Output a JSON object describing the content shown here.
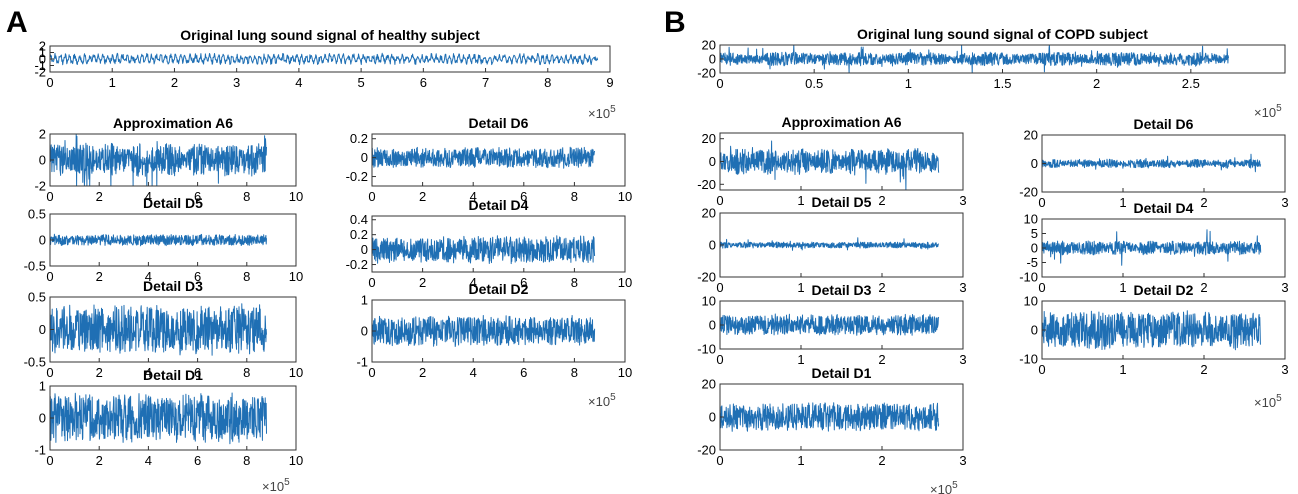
{
  "panel_labels": [
    "A",
    "B"
  ],
  "colors": {
    "signal": "#1f6fb4",
    "axis": "#333333",
    "text": "#000000"
  },
  "chart_data": [
    {
      "id": "A-orig",
      "panel": "A",
      "type": "line",
      "title": "Original lung sound signal of healthy subject",
      "xlim": [
        0,
        9
      ],
      "xticks": [
        0,
        1,
        2,
        3,
        4,
        5,
        6,
        7,
        8,
        9
      ],
      "ylim": [
        -2,
        2
      ],
      "yticks": [
        -2,
        -1,
        0,
        1,
        2
      ],
      "x_exponent": "×10^5",
      "x_range_signal": [
        0,
        8.8
      ],
      "amplitude": 0.9,
      "style": "wave",
      "grid": false
    },
    {
      "id": "A-a6",
      "panel": "A",
      "type": "line",
      "title": "Approximation A6",
      "xlim": [
        0,
        10
      ],
      "xticks": [
        0,
        2,
        4,
        6,
        8,
        10
      ],
      "ylim": [
        -2,
        2
      ],
      "yticks": [
        -2,
        0,
        2
      ],
      "x_range_signal": [
        0,
        8.8
      ],
      "amplitude": 1.3,
      "style": "spiky",
      "grid": false
    },
    {
      "id": "A-d6",
      "panel": "A",
      "type": "line",
      "title": "Detail D6",
      "xlim": [
        0,
        10
      ],
      "xticks": [
        0,
        2,
        4,
        6,
        8,
        10
      ],
      "ylim": [
        -0.3,
        0.25
      ],
      "yticks": [
        -0.2,
        0,
        0.2
      ],
      "x_range_signal": [
        0,
        8.8
      ],
      "amplitude": 0.1,
      "style": "dense",
      "grid": false
    },
    {
      "id": "A-d5",
      "panel": "A",
      "type": "line",
      "title": "Detail D5",
      "xlim": [
        0,
        10
      ],
      "xticks": [
        0,
        2,
        4,
        6,
        8,
        10
      ],
      "ylim": [
        -0.5,
        0.5
      ],
      "yticks": [
        -0.5,
        0,
        0.5
      ],
      "x_range_signal": [
        0,
        8.8
      ],
      "amplitude": 0.1,
      "style": "dense",
      "grid": false
    },
    {
      "id": "A-d4",
      "panel": "A",
      "type": "line",
      "title": "Detail D4",
      "xlim": [
        0,
        10
      ],
      "xticks": [
        0,
        2,
        4,
        6,
        8,
        10
      ],
      "ylim": [
        -0.3,
        0.45
      ],
      "yticks": [
        -0.2,
        0,
        0.2,
        0.4
      ],
      "x_range_signal": [
        0,
        8.8
      ],
      "amplitude": 0.17,
      "style": "dense",
      "grid": false
    },
    {
      "id": "A-d3",
      "panel": "A",
      "type": "line",
      "title": "Detail D3",
      "xlim": [
        0,
        10
      ],
      "xticks": [
        0,
        2,
        4,
        6,
        8,
        10
      ],
      "ylim": [
        -0.5,
        0.5
      ],
      "yticks": [
        -0.5,
        0,
        0.5
      ],
      "x_range_signal": [
        0,
        8.8
      ],
      "amplitude": 0.35,
      "style": "dense",
      "grid": false
    },
    {
      "id": "A-d2",
      "panel": "A",
      "type": "line",
      "title": "Detail D2",
      "xlim": [
        0,
        10
      ],
      "xticks": [
        0,
        2,
        4,
        6,
        8,
        10
      ],
      "ylim": [
        -1,
        1
      ],
      "yticks": [
        -1,
        0,
        1
      ],
      "x_range_signal": [
        0,
        8.8
      ],
      "amplitude": 0.45,
      "style": "dense",
      "grid": false
    },
    {
      "id": "A-d1",
      "panel": "A",
      "type": "line",
      "title": "Detail D1",
      "xlim": [
        0,
        10
      ],
      "xticks": [
        0,
        2,
        4,
        6,
        8,
        10
      ],
      "ylim": [
        -1,
        1
      ],
      "yticks": [
        -1,
        0,
        1
      ],
      "x_range_signal": [
        0,
        8.8
      ],
      "amplitude": 0.7,
      "style": "dense",
      "grid": false
    },
    {
      "id": "B-orig",
      "panel": "B",
      "type": "line",
      "title": "Original lung sound signal of COPD subject",
      "xlim": [
        0,
        3
      ],
      "xticks": [
        0,
        0.5,
        1,
        1.5,
        2,
        2.5
      ],
      "ylim": [
        -20,
        20
      ],
      "yticks": [
        -20,
        0,
        20
      ],
      "x_exponent": "×10^5",
      "x_range_signal": [
        0,
        2.7
      ],
      "amplitude": 10,
      "style": "spiky",
      "grid": false
    },
    {
      "id": "B-a6",
      "panel": "B",
      "type": "line",
      "title": "Approximation A6",
      "xlim": [
        0,
        3
      ],
      "xticks": [
        0,
        1,
        2,
        3
      ],
      "ylim": [
        -25,
        25
      ],
      "yticks": [
        -20,
        0,
        20
      ],
      "x_range_signal": [
        0,
        2.7
      ],
      "amplitude": 12,
      "style": "spiky",
      "grid": false
    },
    {
      "id": "B-d6",
      "panel": "B",
      "type": "line",
      "title": "Detail D6",
      "xlim": [
        0,
        3
      ],
      "xticks": [
        0,
        1,
        2,
        3
      ],
      "ylim": [
        -20,
        20
      ],
      "yticks": [
        -20,
        0,
        20
      ],
      "x_range_signal": [
        0,
        2.7
      ],
      "amplitude": 3,
      "style": "spiky",
      "grid": false
    },
    {
      "id": "B-d5",
      "panel": "B",
      "type": "line",
      "title": "Detail D5",
      "xlim": [
        0,
        3
      ],
      "xticks": [
        0,
        1,
        2,
        3
      ],
      "ylim": [
        -20,
        20
      ],
      "yticks": [
        -20,
        0,
        20
      ],
      "x_range_signal": [
        0,
        2.7
      ],
      "amplitude": 2,
      "style": "spiky",
      "grid": false
    },
    {
      "id": "B-d4",
      "panel": "B",
      "type": "line",
      "title": "Detail D4",
      "xlim": [
        0,
        3
      ],
      "xticks": [
        0,
        1,
        2,
        3
      ],
      "ylim": [
        -10,
        10
      ],
      "yticks": [
        -10,
        -5,
        0,
        5,
        10
      ],
      "x_range_signal": [
        0,
        2.7
      ],
      "amplitude": 2.5,
      "style": "spiky",
      "grid": false
    },
    {
      "id": "B-d3",
      "panel": "B",
      "type": "line",
      "title": "Detail D3",
      "xlim": [
        0,
        3
      ],
      "xticks": [
        0,
        1,
        2,
        3
      ],
      "ylim": [
        -10,
        10
      ],
      "yticks": [
        -10,
        0,
        10
      ],
      "x_range_signal": [
        0,
        2.7
      ],
      "amplitude": 4,
      "style": "dense",
      "grid": false
    },
    {
      "id": "B-d2",
      "panel": "B",
      "type": "line",
      "title": "Detail D2",
      "xlim": [
        0,
        3
      ],
      "xticks": [
        0,
        1,
        2,
        3
      ],
      "ylim": [
        -10,
        10
      ],
      "yticks": [
        -10,
        0,
        10
      ],
      "x_range_signal": [
        0,
        2.7
      ],
      "amplitude": 6,
      "style": "dense",
      "grid": false
    },
    {
      "id": "B-d1",
      "panel": "B",
      "type": "line",
      "title": "Detail D1",
      "xlim": [
        0,
        3
      ],
      "xticks": [
        0,
        1,
        2,
        3
      ],
      "ylim": [
        -20,
        20
      ],
      "yticks": [
        -20,
        0,
        20
      ],
      "x_range_signal": [
        0,
        2.7
      ],
      "amplitude": 8,
      "style": "dense",
      "grid": false
    }
  ]
}
